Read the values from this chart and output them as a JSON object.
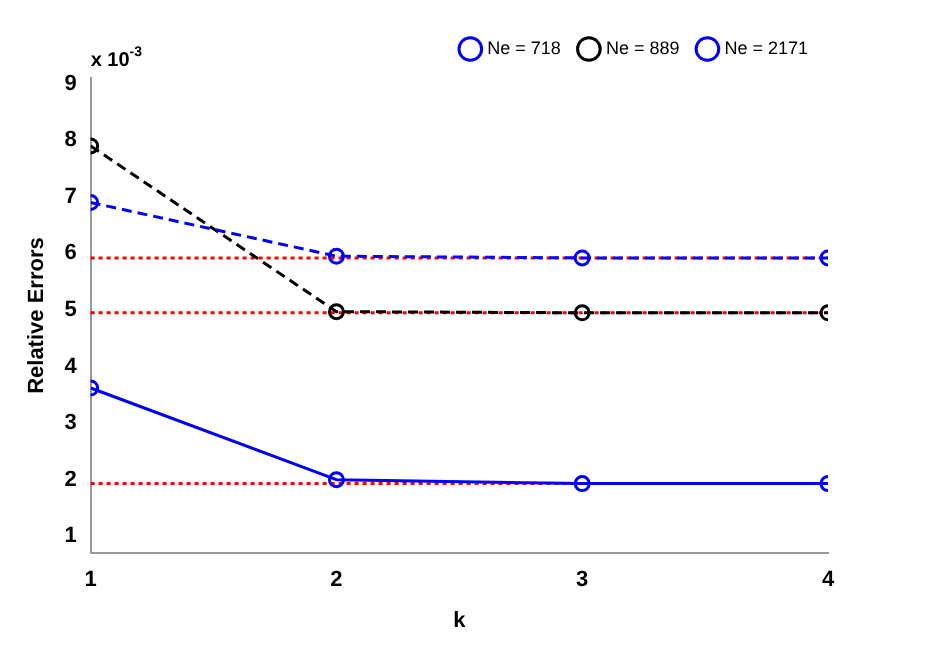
{
  "chart_data": {
    "type": "line",
    "xlabel": "k",
    "ylabel": "Relative Errors",
    "annotations": [
      "x 10$^{-3}$"
    ],
    "x": [
      1,
      2,
      3,
      4
    ],
    "series": [
      {
        "name": "Ne = 718",
        "color": "#0000ff",
        "values": [
          6.9,
          5.95,
          5.92,
          5.92
        ],
        "line_style": "dashed"
      },
      {
        "name": "Ne = 889",
        "color": "#000000",
        "values": [
          7.9,
          4.97,
          4.95,
          4.95
        ],
        "line_style": "dashed"
      },
      {
        "name": "Ne = 2171",
        "color": "#0000ff",
        "values": [
          3.62,
          2.0,
          1.93,
          1.93
        ],
        "line_style": "solid"
      }
    ],
    "ref_lines": [
      {
        "axis": "y",
        "value": 5.92,
        "color": "#ff0000",
        "line_style": "dotted"
      },
      {
        "axis": "y",
        "value": 4.95,
        "color": "#ff0000",
        "line_style": "dotted"
      },
      {
        "axis": "y",
        "value": 1.93,
        "color": "#ff0000",
        "line_style": "dotted"
      }
    ],
    "xlim": [
      1,
      4
    ],
    "xticks": [
      1,
      2,
      3,
      4
    ],
    "ylim": [
      0.7,
      9.1
    ],
    "yticks": [
      1,
      2,
      3,
      4,
      5,
      6,
      7,
      8,
      9
    ],
    "grid": false,
    "legend": "top right",
    "marker": "circle"
  }
}
